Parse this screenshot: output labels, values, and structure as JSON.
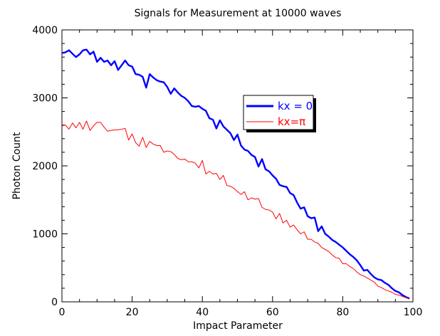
{
  "chart_data": {
    "type": "line",
    "title": "Signals for Measurement at 10000 waves",
    "xlabel": "Impact Parameter",
    "ylabel": "Photon Count",
    "xlim": [
      0,
      100
    ],
    "ylim": [
      0,
      4000
    ],
    "xticks": [
      0,
      20,
      40,
      60,
      80,
      100
    ],
    "yticks": [
      0,
      1000,
      2000,
      3000,
      4000
    ],
    "xtick_labels": [
      "0",
      "20",
      "40",
      "60",
      "80",
      "100"
    ],
    "ytick_labels": [
      "0",
      "1000",
      "2000",
      "3000",
      "4000"
    ],
    "grid": false,
    "legend_position": "right-center",
    "series": [
      {
        "name": "kx = 0",
        "color": "#0000ff",
        "x": [
          0,
          1,
          2,
          3,
          4,
          5,
          6,
          7,
          8,
          9,
          10,
          11,
          12,
          13,
          14,
          15,
          16,
          17,
          18,
          19,
          20,
          21,
          22,
          23,
          24,
          25,
          26,
          27,
          28,
          29,
          30,
          31,
          32,
          33,
          34,
          35,
          36,
          37,
          38,
          39,
          40,
          41,
          42,
          43,
          44,
          45,
          46,
          47,
          48,
          49,
          50,
          51,
          52,
          53,
          54,
          55,
          56,
          57,
          58,
          59,
          60,
          61,
          62,
          63,
          64,
          65,
          66,
          67,
          68,
          69,
          70,
          71,
          72,
          73,
          74,
          75,
          76,
          77,
          78,
          79,
          80,
          81,
          82,
          83,
          84,
          85,
          86,
          87,
          88,
          89,
          90,
          91,
          92,
          93,
          94,
          95,
          96,
          97,
          98,
          99
        ],
        "y": [
          3660,
          3670,
          3700,
          3650,
          3600,
          3640,
          3700,
          3710,
          3640,
          3680,
          3530,
          3590,
          3530,
          3550,
          3480,
          3540,
          3410,
          3480,
          3550,
          3480,
          3460,
          3350,
          3340,
          3310,
          3150,
          3350,
          3300,
          3260,
          3240,
          3230,
          3160,
          3060,
          3140,
          3080,
          3030,
          3000,
          2950,
          2880,
          2870,
          2880,
          2840,
          2810,
          2700,
          2680,
          2550,
          2670,
          2580,
          2530,
          2480,
          2380,
          2460,
          2300,
          2240,
          2220,
          2160,
          2130,
          1990,
          2100,
          1950,
          1920,
          1860,
          1810,
          1720,
          1700,
          1690,
          1600,
          1570,
          1460,
          1370,
          1390,
          1260,
          1230,
          1240,
          1040,
          1110,
          1000,
          960,
          910,
          880,
          840,
          800,
          750,
          700,
          660,
          610,
          540,
          460,
          470,
          410,
          360,
          330,
          320,
          280,
          250,
          200,
          160,
          140,
          100,
          70,
          50
        ]
      },
      {
        "name": "kx=π",
        "color": "#ff0000",
        "x": [
          0,
          1,
          2,
          3,
          4,
          5,
          6,
          7,
          8,
          9,
          10,
          11,
          12,
          13,
          14,
          15,
          16,
          17,
          18,
          19,
          20,
          21,
          22,
          23,
          24,
          25,
          26,
          27,
          28,
          29,
          30,
          31,
          32,
          33,
          34,
          35,
          36,
          37,
          38,
          39,
          40,
          41,
          42,
          43,
          44,
          45,
          46,
          47,
          48,
          49,
          50,
          51,
          52,
          53,
          54,
          55,
          56,
          57,
          58,
          59,
          60,
          61,
          62,
          63,
          64,
          65,
          66,
          67,
          68,
          69,
          70,
          71,
          72,
          73,
          74,
          75,
          76,
          77,
          78,
          79,
          80,
          81,
          82,
          83,
          84,
          85,
          86,
          87,
          88,
          89,
          90,
          91,
          92,
          93,
          94,
          95,
          96,
          97,
          98,
          99
        ],
        "y": [
          2590,
          2600,
          2540,
          2630,
          2560,
          2640,
          2540,
          2660,
          2520,
          2590,
          2640,
          2640,
          2570,
          2510,
          2520,
          2530,
          2530,
          2540,
          2550,
          2380,
          2470,
          2340,
          2290,
          2420,
          2270,
          2360,
          2320,
          2300,
          2300,
          2200,
          2220,
          2210,
          2170,
          2110,
          2090,
          2100,
          2060,
          2060,
          2040,
          1970,
          2080,
          1880,
          1920,
          1880,
          1890,
          1800,
          1860,
          1710,
          1700,
          1670,
          1620,
          1580,
          1620,
          1500,
          1530,
          1510,
          1520,
          1390,
          1360,
          1350,
          1320,
          1220,
          1300,
          1160,
          1200,
          1100,
          1130,
          1060,
          1000,
          1030,
          920,
          920,
          880,
          860,
          800,
          770,
          740,
          690,
          650,
          640,
          560,
          560,
          520,
          490,
          440,
          400,
          380,
          350,
          320,
          290,
          230,
          210,
          180,
          160,
          140,
          110,
          100,
          80,
          60,
          40
        ]
      }
    ]
  }
}
